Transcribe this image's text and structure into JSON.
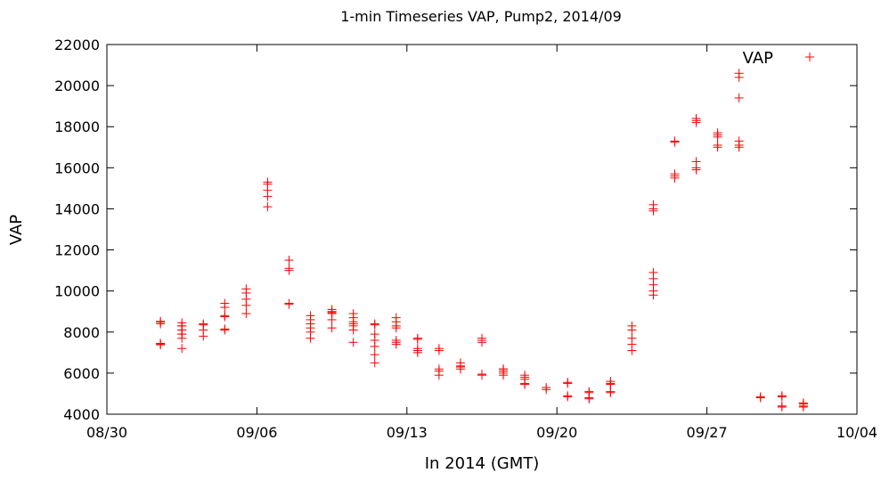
{
  "chart_data": {
    "type": "scatter",
    "title": "1-min Timeseries VAP, Pump2, 2014/09",
    "xlabel": "In 2014 (GMT)",
    "ylabel": "VAP",
    "x_is_date": true,
    "xlim": [
      "2014-08-30",
      "2014-10-04"
    ],
    "ylim": [
      4000,
      22000
    ],
    "xticks": [
      "08/30",
      "09/06",
      "09/13",
      "09/20",
      "09/27",
      "10/04"
    ],
    "yticks": [
      "4000",
      "6000",
      "8000",
      "10000",
      "12000",
      "14000",
      "16000",
      "18000",
      "20000",
      "22000"
    ],
    "grid": false,
    "legend_position": "top-right",
    "series": [
      {
        "name": "VAP",
        "color": "#ff0000",
        "marker": "plus",
        "points": [
          [
            "2014-09-01",
            7420
          ],
          [
            "2014-09-01",
            7380
          ],
          [
            "2014-09-01",
            7450
          ],
          [
            "2014-09-01",
            8480
          ],
          [
            "2014-09-01",
            8520
          ],
          [
            "2014-09-01",
            8400
          ],
          [
            "2014-09-02",
            8450
          ],
          [
            "2014-09-02",
            8300
          ],
          [
            "2014-09-02",
            8100
          ],
          [
            "2014-09-02",
            7900
          ],
          [
            "2014-09-02",
            8300
          ],
          [
            "2014-09-02",
            8100
          ],
          [
            "2014-09-02",
            7900
          ],
          [
            "2014-09-02",
            7700
          ],
          [
            "2014-09-02",
            7200
          ],
          [
            "2014-09-03",
            8100
          ],
          [
            "2014-09-03",
            7800
          ],
          [
            "2014-09-03",
            8350
          ],
          [
            "2014-09-03",
            8400
          ],
          [
            "2014-09-04",
            8100
          ],
          [
            "2014-09-04",
            8150
          ],
          [
            "2014-09-04",
            9400
          ],
          [
            "2014-09-04",
            9200
          ],
          [
            "2014-09-04",
            8800
          ],
          [
            "2014-09-04",
            8750
          ],
          [
            "2014-09-05",
            10100
          ],
          [
            "2014-09-05",
            9900
          ],
          [
            "2014-09-05",
            9600
          ],
          [
            "2014-09-05",
            9300
          ],
          [
            "2014-09-05",
            8900
          ],
          [
            "2014-09-06",
            15300
          ],
          [
            "2014-09-06",
            15200
          ],
          [
            "2014-09-06",
            14900
          ],
          [
            "2014-09-06",
            14600
          ],
          [
            "2014-09-06",
            14100
          ],
          [
            "2014-09-07",
            11000
          ],
          [
            "2014-09-07",
            11100
          ],
          [
            "2014-09-07",
            11500
          ],
          [
            "2014-09-07",
            9400
          ],
          [
            "2014-09-07",
            9350
          ],
          [
            "2014-09-08",
            8200
          ],
          [
            "2014-09-08",
            8000
          ],
          [
            "2014-09-08",
            7700
          ],
          [
            "2014-09-08",
            8800
          ],
          [
            "2014-09-08",
            8600
          ],
          [
            "2014-09-08",
            8400
          ],
          [
            "2014-09-09",
            9100
          ],
          [
            "2014-09-09",
            8900
          ],
          [
            "2014-09-09",
            8600
          ],
          [
            "2014-09-09",
            8200
          ],
          [
            "2014-09-09",
            9000
          ],
          [
            "2014-09-09",
            8950
          ],
          [
            "2014-09-10",
            8400
          ],
          [
            "2014-09-10",
            8300
          ],
          [
            "2014-09-10",
            8100
          ],
          [
            "2014-09-10",
            8900
          ],
          [
            "2014-09-10",
            8700
          ],
          [
            "2014-09-10",
            8500
          ],
          [
            "2014-09-10",
            7500
          ],
          [
            "2014-09-11",
            8400
          ],
          [
            "2014-09-11",
            8350
          ],
          [
            "2014-09-11",
            7900
          ],
          [
            "2014-09-11",
            7600
          ],
          [
            "2014-09-11",
            7300
          ],
          [
            "2014-09-11",
            6900
          ],
          [
            "2014-09-11",
            6500
          ],
          [
            "2014-09-12",
            8300
          ],
          [
            "2014-09-12",
            8200
          ],
          [
            "2014-09-12",
            8500
          ],
          [
            "2014-09-12",
            8700
          ],
          [
            "2014-09-12",
            7500
          ],
          [
            "2014-09-12",
            7400
          ],
          [
            "2014-09-12",
            7600
          ],
          [
            "2014-09-13",
            7700
          ],
          [
            "2014-09-13",
            7650
          ],
          [
            "2014-09-13",
            7100
          ],
          [
            "2014-09-13",
            7000
          ],
          [
            "2014-09-13",
            7200
          ],
          [
            "2014-09-14",
            7200
          ],
          [
            "2014-09-14",
            7100
          ],
          [
            "2014-09-14",
            6200
          ],
          [
            "2014-09-14",
            6100
          ],
          [
            "2014-09-14",
            5900
          ],
          [
            "2014-09-15",
            6500
          ],
          [
            "2014-09-15",
            6300
          ],
          [
            "2014-09-15",
            6200
          ],
          [
            "2014-09-15",
            6300
          ],
          [
            "2014-09-15",
            6350
          ],
          [
            "2014-09-16",
            7600
          ],
          [
            "2014-09-16",
            7700
          ],
          [
            "2014-09-16",
            7500
          ],
          [
            "2014-09-16",
            5900
          ],
          [
            "2014-09-16",
            5950
          ],
          [
            "2014-09-17",
            6200
          ],
          [
            "2014-09-17",
            6100
          ],
          [
            "2014-09-17",
            6000
          ],
          [
            "2014-09-17",
            6200
          ],
          [
            "2014-09-17",
            6100
          ],
          [
            "2014-09-17",
            5900
          ],
          [
            "2014-09-18",
            5500
          ],
          [
            "2014-09-18",
            5450
          ],
          [
            "2014-09-18",
            5800
          ],
          [
            "2014-09-18",
            5900
          ],
          [
            "2014-09-18",
            5700
          ],
          [
            "2014-09-19",
            5300
          ],
          [
            "2014-09-19",
            5200
          ],
          [
            "2014-09-20",
            5500
          ],
          [
            "2014-09-20",
            5550
          ],
          [
            "2014-09-20",
            4900
          ],
          [
            "2014-09-20",
            4850
          ],
          [
            "2014-09-21",
            5100
          ],
          [
            "2014-09-21",
            5050
          ],
          [
            "2014-09-21",
            4750
          ],
          [
            "2014-09-21",
            4800
          ],
          [
            "2014-09-22",
            5500
          ],
          [
            "2014-09-22",
            5450
          ],
          [
            "2014-09-22",
            5600
          ],
          [
            "2014-09-22",
            5100
          ],
          [
            "2014-09-22",
            5050
          ],
          [
            "2014-09-23",
            8300
          ],
          [
            "2014-09-23",
            8100
          ],
          [
            "2014-09-23",
            7700
          ],
          [
            "2014-09-23",
            7400
          ],
          [
            "2014-09-23",
            7100
          ],
          [
            "2014-09-24",
            10900
          ],
          [
            "2014-09-24",
            10600
          ],
          [
            "2014-09-24",
            10300
          ],
          [
            "2014-09-24",
            10000
          ],
          [
            "2014-09-24",
            9800
          ],
          [
            "2014-09-24",
            14200
          ],
          [
            "2014-09-24",
            14000
          ],
          [
            "2014-09-24",
            13900
          ],
          [
            "2014-09-25",
            15600
          ],
          [
            "2014-09-25",
            15700
          ],
          [
            "2014-09-25",
            15500
          ],
          [
            "2014-09-25",
            17300
          ],
          [
            "2014-09-25",
            17250
          ],
          [
            "2014-09-26",
            18300
          ],
          [
            "2014-09-26",
            18400
          ],
          [
            "2014-09-26",
            18200
          ],
          [
            "2014-09-26",
            16000
          ],
          [
            "2014-09-26",
            15900
          ],
          [
            "2014-09-26",
            16300
          ],
          [
            "2014-09-27",
            17700
          ],
          [
            "2014-09-27",
            17500
          ],
          [
            "2014-09-27",
            17600
          ],
          [
            "2014-09-27",
            17000
          ],
          [
            "2014-09-27",
            17100
          ],
          [
            "2014-09-28",
            20600
          ],
          [
            "2014-09-28",
            20400
          ],
          [
            "2014-09-28",
            19400
          ],
          [
            "2014-09-28",
            17300
          ],
          [
            "2014-09-28",
            17000
          ],
          [
            "2014-09-28",
            17100
          ],
          [
            "2014-09-29",
            4800
          ],
          [
            "2014-09-29",
            4850
          ],
          [
            "2014-09-30",
            4350
          ],
          [
            "2014-09-30",
            4400
          ],
          [
            "2014-09-30",
            4900
          ],
          [
            "2014-09-30",
            4850
          ],
          [
            "2014-10-01",
            4550
          ],
          [
            "2014-10-01",
            4500
          ],
          [
            "2014-10-01",
            4350
          ],
          [
            "2014-10-01",
            4400
          ]
        ]
      }
    ]
  }
}
